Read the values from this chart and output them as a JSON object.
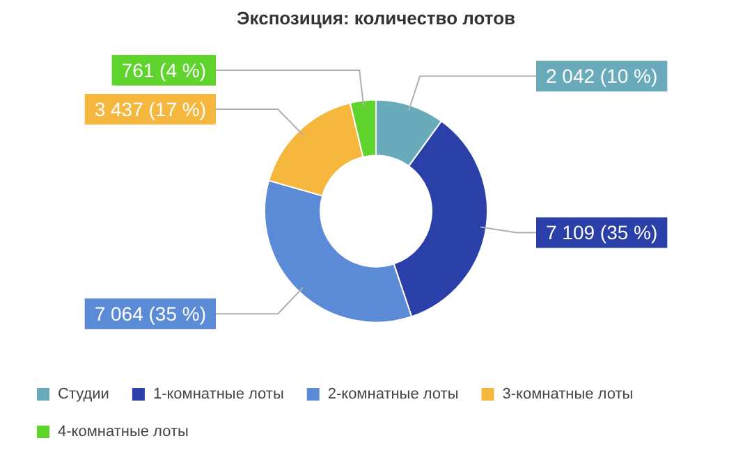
{
  "chart_data": {
    "type": "donut",
    "title": "Экспозиция: количество лотов",
    "categories": [
      "Студии",
      "1-комнатные лоты",
      "2-комнатные лоты",
      "3-комнатные лоты",
      "4-комнатные лоты"
    ],
    "values": [
      2042,
      7109,
      7064,
      3437,
      761
    ],
    "value_labels": [
      "2 042 (10 %)",
      "7 109 (35 %)",
      "7 064 (35 %)",
      "3 437 (17 %)",
      "761 (4 %)"
    ],
    "colors": [
      "#6aabbb",
      "#2a3fa8",
      "#5b8bd6",
      "#f5b73d",
      "#5ed42c"
    ],
    "legend": "bottom"
  }
}
